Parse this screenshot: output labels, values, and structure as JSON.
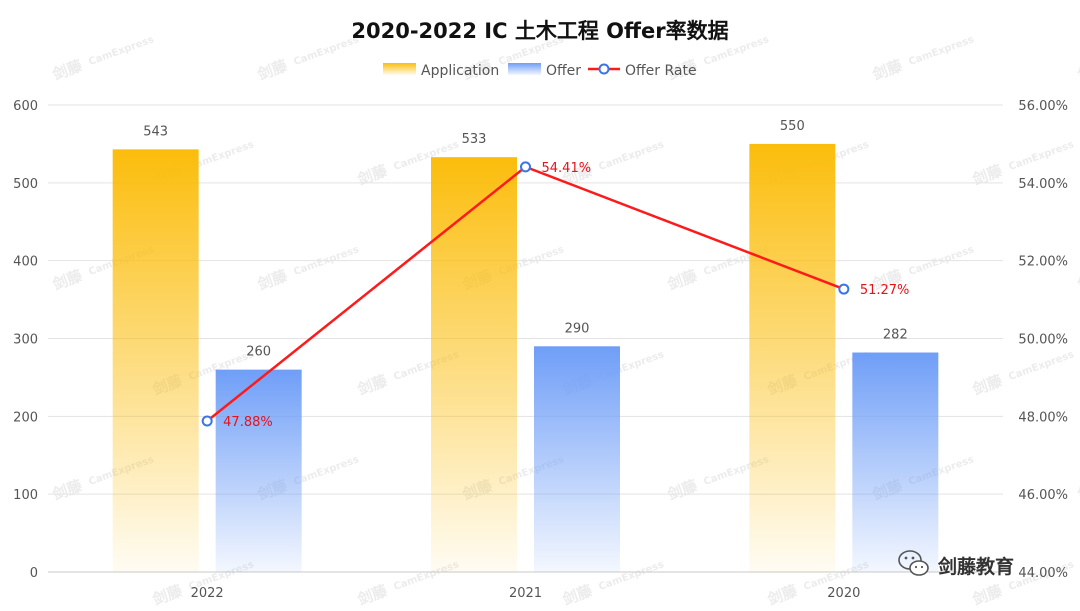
{
  "chart_data": {
    "type": "bar",
    "title": "2020-2022 IC 土木工程 Offer率数据",
    "categories": [
      "2022",
      "2021",
      "2020"
    ],
    "series": [
      {
        "name": "Application",
        "type": "bar",
        "axis": "left",
        "values": [
          543,
          533,
          550
        ],
        "labels": [
          "543",
          "533",
          "550"
        ]
      },
      {
        "name": "Offer",
        "type": "bar",
        "axis": "left",
        "values": [
          260,
          290,
          282
        ],
        "labels": [
          "260",
          "290",
          "282"
        ]
      },
      {
        "name": "Offer Rate",
        "type": "line",
        "axis": "right",
        "values": [
          47.88,
          54.41,
          51.27
        ],
        "labels": [
          "47.88%",
          "54.41%",
          "51.27%"
        ]
      }
    ],
    "y_left": {
      "min": 0,
      "max": 600,
      "ticks": [
        "0",
        "100",
        "200",
        "300",
        "400",
        "500",
        "600"
      ]
    },
    "y_right": {
      "min": 44,
      "max": 56,
      "ticks": [
        "44.00%",
        "46.00%",
        "48.00%",
        "50.00%",
        "52.00%",
        "54.00%",
        "56.00%"
      ]
    },
    "grid": true,
    "legend_position": "top-center",
    "colors": {
      "application": "#fbbd0c",
      "offer": "#6f9ef7",
      "rate_line": "#ff1a1a",
      "rate_marker": "#3b74e6"
    }
  },
  "watermark": {
    "brand_cn": "剑藤",
    "brand_en": "CamExpress"
  },
  "brand_footer": {
    "icon": "wechat-icon",
    "text": "剑藤教育"
  }
}
